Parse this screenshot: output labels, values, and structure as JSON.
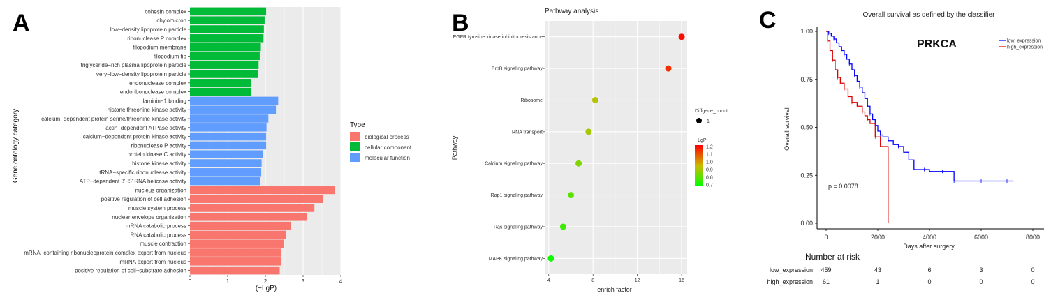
{
  "panels": {
    "a": {
      "letter": "A"
    },
    "b": {
      "letter": "B"
    },
    "c": {
      "letter": "C"
    }
  },
  "chart_data": [
    {
      "type": "bar",
      "orientation": "horizontal",
      "xlabel": "(−LgP)",
      "ylabel": "Gene ontology category",
      "xlim": [
        0,
        4
      ],
      "xticks": [
        "0",
        "1",
        "2",
        "3",
        "4"
      ],
      "legend": {
        "title": "Type",
        "placement": "right",
        "entries": [
          {
            "label": "biological process",
            "color": "#f8766d"
          },
          {
            "label": "cellular component",
            "color": "#00ba38"
          },
          {
            "label": "molecular function",
            "color": "#619cff"
          }
        ]
      },
      "categories": [
        "cohesin complex",
        "chylomicron",
        "low−density lipoprotein particle",
        "ribonuclease P complex",
        "filopodium membrane",
        "filopodium tip",
        "triglyceride−rich plasma lipoprotein particle",
        "very−low−density lipoprotein particle",
        "endonuclease complex",
        "endoribonuclease complex",
        "laminin−1 binding",
        "histone threonine kinase activity",
        "calcium−dependent protein serine/threonine kinase activity",
        "actin−dependent ATPase activity",
        "calcium−dependent protein kinase activity",
        "ribonuclease P activity",
        "protein kinase C activity",
        "histone kinase activity",
        "tRNA−specific ribonuclease activity",
        "ATP−dependent 3'−5' RNA helicase activity",
        "nucleus organization",
        "positive regulation of cell adhesion",
        "muscle system process",
        "nuclear envelope organization",
        "mRNA catabolic process",
        "RNA catabolic process",
        "muscle contraction",
        "mRNA−containing ribonucleoprotein complex export from nucleus",
        "mRNA export from nucleus",
        "positive regulation of cell−substrate adhesion"
      ],
      "values": [
        2.02,
        1.98,
        1.96,
        1.95,
        1.88,
        1.85,
        1.82,
        1.8,
        1.63,
        1.62,
        2.34,
        2.28,
        2.08,
        2.03,
        2.02,
        2.02,
        1.93,
        1.9,
        1.89,
        1.87,
        3.84,
        3.52,
        3.3,
        3.1,
        2.68,
        2.55,
        2.5,
        2.42,
        2.42,
        2.38
      ],
      "types": [
        "cellular component",
        "cellular component",
        "cellular component",
        "cellular component",
        "cellular component",
        "cellular component",
        "cellular component",
        "cellular component",
        "cellular component",
        "cellular component",
        "molecular function",
        "molecular function",
        "molecular function",
        "molecular function",
        "molecular function",
        "molecular function",
        "molecular function",
        "molecular function",
        "molecular function",
        "molecular function",
        "biological process",
        "biological process",
        "biological process",
        "biological process",
        "biological process",
        "biological process",
        "biological process",
        "biological process",
        "biological process",
        "biological process"
      ]
    },
    {
      "type": "scatter",
      "title": "Pathway analysis",
      "xlabel": "enrich factor",
      "ylabel": "Pathway",
      "xlim": [
        3.7,
        16.5
      ],
      "xticks": [
        "4",
        "8",
        "12",
        "16"
      ],
      "categories": [
        "EGFR tyrosine kinase inhibitor resistance",
        "ErbB signaling pathway",
        "Ribosome",
        "RNA transport",
        "Calcium signaling pathway",
        "Rap1 signaling pathway",
        "Ras signaling pathway",
        "MAPK signaling pathway"
      ],
      "x": [
        16.0,
        14.8,
        8.2,
        7.6,
        6.7,
        6.0,
        5.3,
        4.2
      ],
      "color_value": [
        1.2,
        1.15,
        0.92,
        0.9,
        0.85,
        0.8,
        0.76,
        0.7
      ],
      "size_legend": {
        "title": "Diffgene_count",
        "label": "1"
      },
      "color_legend": {
        "title": "−LgP",
        "ticks": [
          "1.2",
          "1.1",
          "1.0",
          "0.9",
          "0.8",
          "0.7"
        ],
        "range": [
          0.68,
          1.22
        ],
        "colors": [
          "#ff0000",
          "#00ff00"
        ]
      }
    },
    {
      "type": "line",
      "title": "Overall survival as defined by the classifier",
      "gene": "PRKCA",
      "xlabel": "Days after surgery",
      "ylabel": "Overall survival",
      "xlim": [
        0,
        8000
      ],
      "ylim": [
        0,
        1
      ],
      "xticks": [
        "0",
        "2000",
        "4000",
        "6000",
        "8000"
      ],
      "yticks": [
        "0.00",
        "0.25",
        "0.50",
        "0.75",
        "1.00"
      ],
      "pvalue": "p = 0.0078",
      "legend": {
        "placement": "top-right"
      },
      "series": [
        {
          "name": "low_expression",
          "color": "#0000ff",
          "points": [
            [
              0,
              1.0
            ],
            [
              100,
              0.99
            ],
            [
              200,
              0.975
            ],
            [
              300,
              0.96
            ],
            [
              400,
              0.94
            ],
            [
              500,
              0.92
            ],
            [
              600,
              0.9
            ],
            [
              700,
              0.88
            ],
            [
              800,
              0.855
            ],
            [
              900,
              0.83
            ],
            [
              1000,
              0.8
            ],
            [
              1100,
              0.77
            ],
            [
              1200,
              0.74
            ],
            [
              1300,
              0.71
            ],
            [
              1400,
              0.68
            ],
            [
              1500,
              0.65
            ],
            [
              1600,
              0.61
            ],
            [
              1700,
              0.57
            ],
            [
              1800,
              0.54
            ],
            [
              1900,
              0.51
            ],
            [
              2000,
              0.48
            ],
            [
              2100,
              0.46
            ],
            [
              2200,
              0.45
            ],
            [
              2400,
              0.43
            ],
            [
              2600,
              0.41
            ],
            [
              2800,
              0.4
            ],
            [
              3000,
              0.37
            ],
            [
              3200,
              0.33
            ],
            [
              3400,
              0.28
            ],
            [
              3800,
              0.28
            ],
            [
              4000,
              0.27
            ],
            [
              4500,
              0.27
            ],
            [
              4900,
              0.27
            ],
            [
              4950,
              0.22
            ],
            [
              5500,
              0.22
            ],
            [
              6000,
              0.22
            ],
            [
              6500,
              0.22
            ],
            [
              7000,
              0.22
            ],
            [
              7250,
              0.22
            ]
          ]
        },
        {
          "name": "high_expression",
          "color": "#dd0000",
          "points": [
            [
              0,
              1.0
            ],
            [
              60,
              0.95
            ],
            [
              150,
              0.9
            ],
            [
              250,
              0.85
            ],
            [
              350,
              0.8
            ],
            [
              450,
              0.76
            ],
            [
              550,
              0.73
            ],
            [
              700,
              0.7
            ],
            [
              850,
              0.66
            ],
            [
              1000,
              0.63
            ],
            [
              1200,
              0.61
            ],
            [
              1400,
              0.58
            ],
            [
              1500,
              0.56
            ],
            [
              1600,
              0.54
            ],
            [
              1700,
              0.52
            ],
            [
              1900,
              0.45
            ],
            [
              2100,
              0.4
            ],
            [
              2400,
              0.34
            ],
            [
              2400,
              0.0
            ]
          ]
        }
      ],
      "risk_table": {
        "title": "Number at risk",
        "times": [
          0,
          2000,
          4000,
          6000,
          8000
        ],
        "rows": [
          {
            "label": "low_expression",
            "values": [
              "459",
              "43",
              "6",
              "3",
              "0"
            ]
          },
          {
            "label": "high_expression",
            "values": [
              "61",
              "1",
              "0",
              "0",
              "0"
            ]
          }
        ]
      }
    }
  ]
}
